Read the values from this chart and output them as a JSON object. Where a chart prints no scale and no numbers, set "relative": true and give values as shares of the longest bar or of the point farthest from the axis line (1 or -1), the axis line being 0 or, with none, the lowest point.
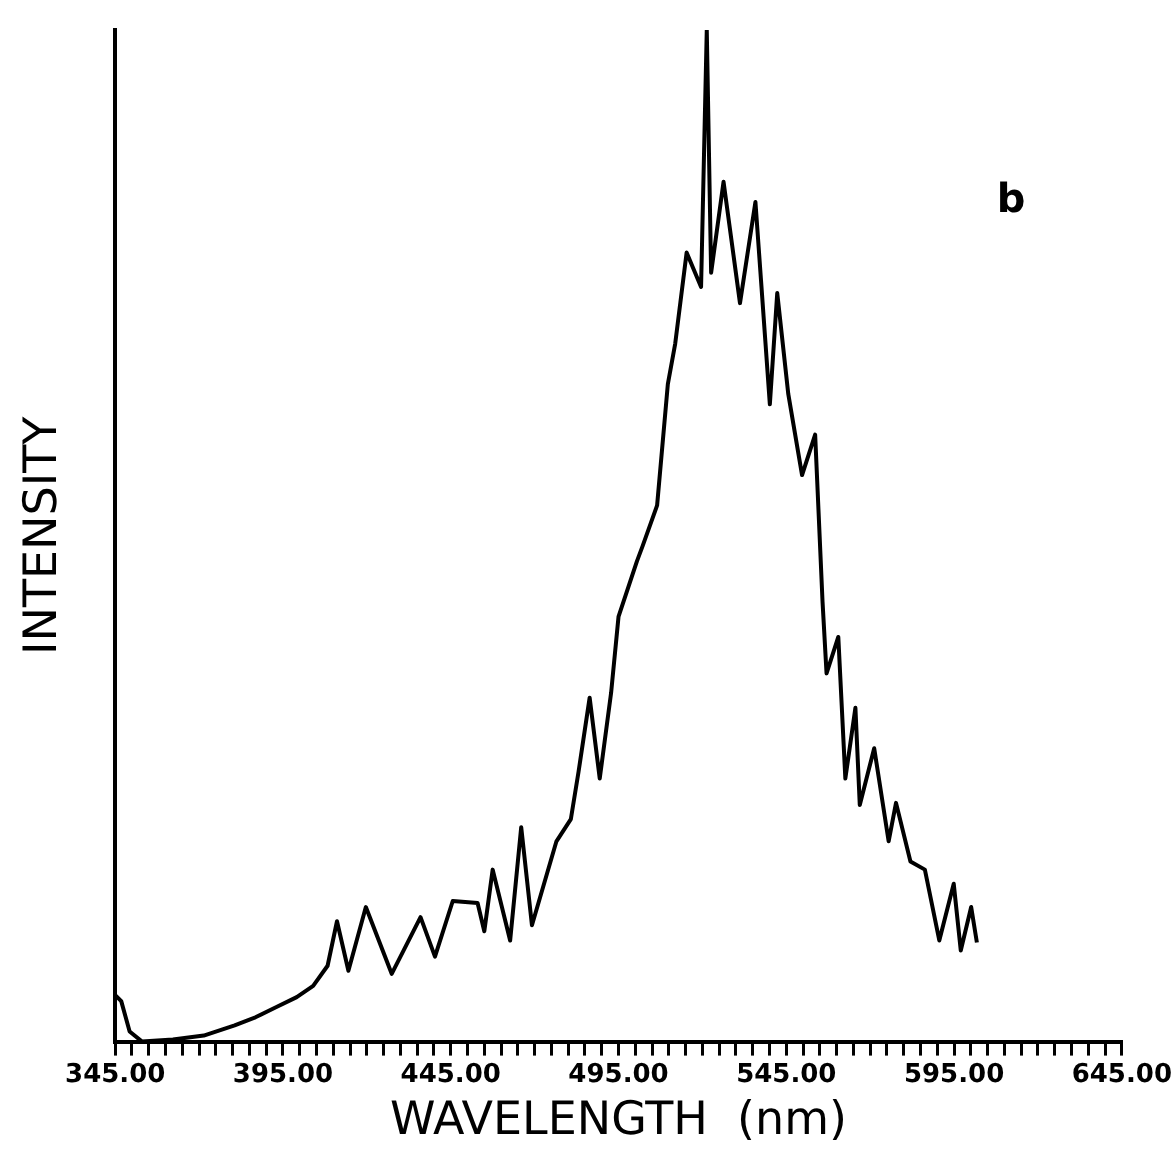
{
  "chart_data": {
    "type": "line",
    "xlabel": "WAVELENGTH  (nm)",
    "ylabel": "INTENSITY",
    "relative": true,
    "legend": false,
    "grid": false,
    "marker": "none",
    "line_style": "solid",
    "annotations": [
      "b"
    ],
    "xlim": [
      345,
      645
    ],
    "xticks": [
      {
        "value": 345,
        "label": "345.00"
      },
      {
        "value": 350,
        "label": null
      },
      {
        "value": 355,
        "label": null
      },
      {
        "value": 360,
        "label": null
      },
      {
        "value": 365,
        "label": null
      },
      {
        "value": 370,
        "label": null
      },
      {
        "value": 375,
        "label": null
      },
      {
        "value": 380,
        "label": null
      },
      {
        "value": 385,
        "label": null
      },
      {
        "value": 390,
        "label": null
      },
      {
        "value": 395,
        "label": "395.00"
      },
      {
        "value": 400,
        "label": null
      },
      {
        "value": 405,
        "label": null
      },
      {
        "value": 410,
        "label": null
      },
      {
        "value": 415,
        "label": null
      },
      {
        "value": 420,
        "label": null
      },
      {
        "value": 425,
        "label": null
      },
      {
        "value": 430,
        "label": null
      },
      {
        "value": 435,
        "label": null
      },
      {
        "value": 440,
        "label": null
      },
      {
        "value": 445,
        "label": "445.00"
      },
      {
        "value": 450,
        "label": null
      },
      {
        "value": 455,
        "label": null
      },
      {
        "value": 460,
        "label": null
      },
      {
        "value": 465,
        "label": null
      },
      {
        "value": 470,
        "label": null
      },
      {
        "value": 475,
        "label": null
      },
      {
        "value": 480,
        "label": null
      },
      {
        "value": 485,
        "label": null
      },
      {
        "value": 490,
        "label": null
      },
      {
        "value": 495,
        "label": "495.00"
      },
      {
        "value": 500,
        "label": null
      },
      {
        "value": 505,
        "label": null
      },
      {
        "value": 510,
        "label": null
      },
      {
        "value": 515,
        "label": null
      },
      {
        "value": 520,
        "label": null
      },
      {
        "value": 525,
        "label": null
      },
      {
        "value": 530,
        "label": null
      },
      {
        "value": 535,
        "label": null
      },
      {
        "value": 540,
        "label": null
      },
      {
        "value": 545,
        "label": "545.00"
      },
      {
        "value": 550,
        "label": null
      },
      {
        "value": 555,
        "label": null
      },
      {
        "value": 560,
        "label": null
      },
      {
        "value": 565,
        "label": null
      },
      {
        "value": 570,
        "label": null
      },
      {
        "value": 575,
        "label": null
      },
      {
        "value": 580,
        "label": null
      },
      {
        "value": 585,
        "label": null
      },
      {
        "value": 590,
        "label": null
      },
      {
        "value": 595,
        "label": "595.00"
      },
      {
        "value": 600,
        "label": null
      },
      {
        "value": 605,
        "label": null
      },
      {
        "value": 610,
        "label": null
      },
      {
        "value": 615,
        "label": null
      },
      {
        "value": 620,
        "label": null
      },
      {
        "value": 625,
        "label": null
      },
      {
        "value": 630,
        "label": null
      },
      {
        "value": 635,
        "label": null
      },
      {
        "value": 640,
        "label": null
      },
      {
        "value": 645,
        "label": "645.00"
      }
    ],
    "x": [
      345,
      346.8,
      349.3,
      353,
      362.2,
      371.4,
      380.6,
      386.8,
      392.9,
      399.1,
      404,
      408.3,
      411.1,
      414.5,
      419.7,
      427.4,
      436,
      440.3,
      445.6,
      453,
      455,
      457.5,
      462.7,
      466,
      469.2,
      476.5,
      480.8,
      483.1,
      486.4,
      489.4,
      492.8,
      495,
      500.5,
      502.2,
      506.5,
      509.7,
      511.9,
      515.3,
      519.6,
      521.3,
      522.6,
      526.3,
      531.2,
      535.8,
      540.1,
      542.3,
      545.6,
      549.7,
      553.6,
      555.8,
      557,
      560.5,
      562.6,
      565.6,
      566.9,
      571.2,
      575.5,
      577.7,
      582,
      586.3,
      590.6,
      594.9,
      597,
      600.1,
      601.8
    ],
    "series": [
      {
        "color": "#000000",
        "values": [
          0.046,
          0.04,
          0.01,
          0,
          0.002,
          0.006,
          0.016,
          0.024,
          0.034,
          0.044,
          0.055,
          0.075,
          0.119,
          0.07,
          0.133,
          0.067,
          0.123,
          0.084,
          0.139,
          0.137,
          0.109,
          0.17,
          0.1,
          0.212,
          0.115,
          0.198,
          0.22,
          0.267,
          0.34,
          0.26,
          0.345,
          0.42,
          0.475,
          0.49,
          0.53,
          0.65,
          0.69,
          0.78,
          0.746,
          1,
          0.76,
          0.85,
          0.73,
          0.83,
          0.63,
          0.74,
          0.64,
          0.56,
          0.6,
          0.435,
          0.364,
          0.4,
          0.26,
          0.33,
          0.234,
          0.29,
          0.198,
          0.236,
          0.178,
          0.17,
          0.1,
          0.156,
          0.09,
          0.133,
          0.098
        ]
      }
    ]
  }
}
